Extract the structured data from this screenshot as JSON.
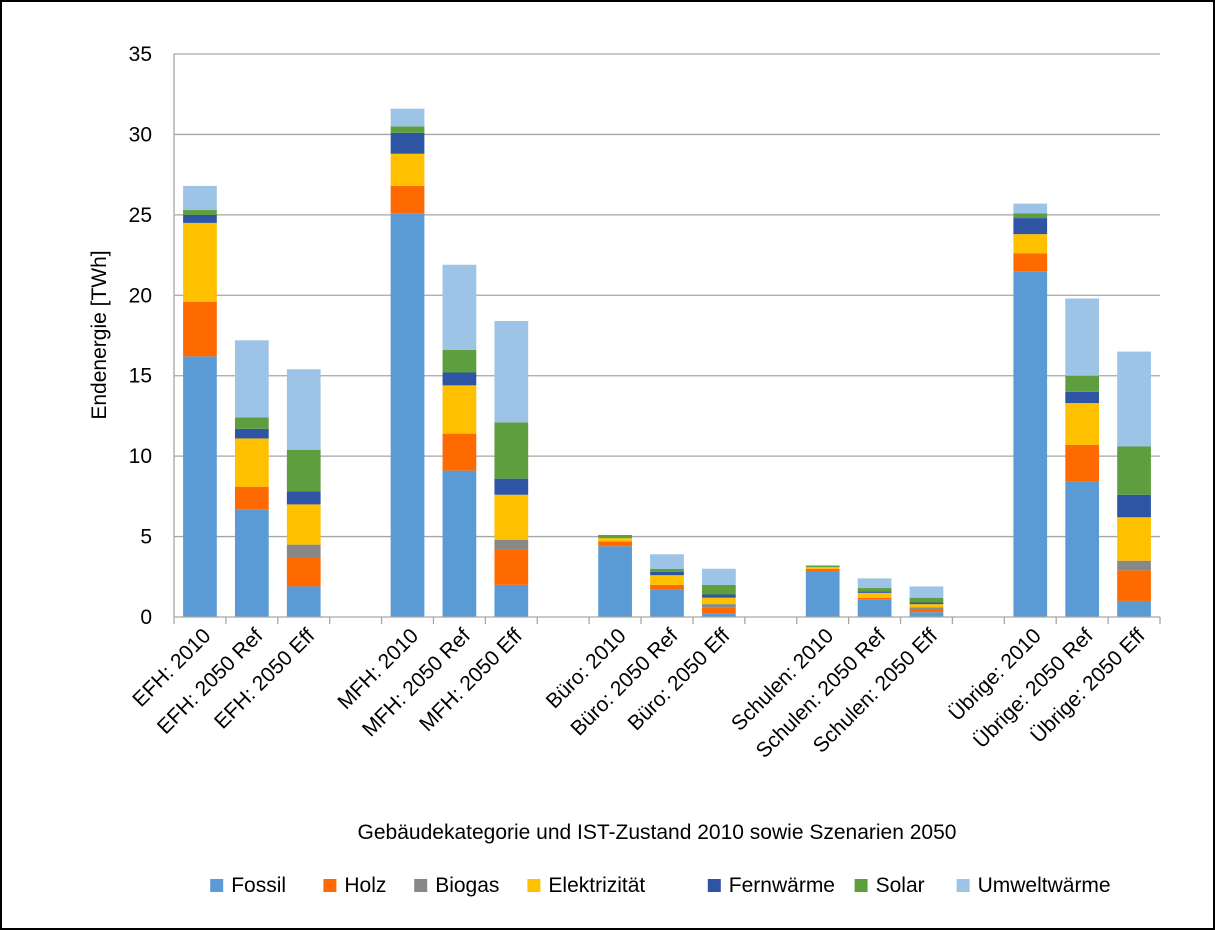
{
  "chart_data": {
    "type": "bar",
    "stacked": true,
    "title": "",
    "xlabel": "Gebäudekategorie und IST-Zustand 2010 sowie Szenarien 2050",
    "ylabel": "Endenergie [TWh]",
    "ylim": [
      0,
      35
    ],
    "yticks": [
      0,
      5,
      10,
      15,
      20,
      25,
      30,
      35
    ],
    "grid": true,
    "legend_position": "bottom",
    "categories": [
      "EFH: 2010",
      "EFH: 2050 Ref",
      "EFH: 2050 Eff",
      "MFH: 2010",
      "MFH: 2050 Ref",
      "MFH: 2050 Eff",
      "Büro: 2010",
      "Büro: 2050 Ref",
      "Büro: 2050 Eff",
      "Schulen: 2010",
      "Schulen: 2050 Ref",
      "Schulen: 2050 Eff",
      "Übrige: 2010",
      "Übrige: 2050 Ref",
      "Übrige: 2050 Eff"
    ],
    "groups": [
      3,
      3,
      3,
      3,
      3
    ],
    "series": [
      {
        "name": "Fossil",
        "color": "#5B9BD5",
        "values": [
          16.2,
          6.7,
          1.9,
          25.1,
          9.1,
          2.0,
          4.4,
          1.7,
          0.2,
          2.8,
          1.1,
          0.3,
          21.5,
          8.4,
          1.0
        ]
      },
      {
        "name": "Holz",
        "color": "#FF6A00",
        "values": [
          3.4,
          1.4,
          1.8,
          1.7,
          2.3,
          2.2,
          0.3,
          0.3,
          0.4,
          0.2,
          0.1,
          0.2,
          1.1,
          2.3,
          1.9
        ]
      },
      {
        "name": "Biogas",
        "color": "#888888",
        "values": [
          0.0,
          0.0,
          0.8,
          0.0,
          0.0,
          0.6,
          0.0,
          0.0,
          0.2,
          0.0,
          0.0,
          0.1,
          0.0,
          0.0,
          0.6
        ]
      },
      {
        "name": "Elektrizität",
        "color": "#FFC000",
        "values": [
          4.9,
          3.0,
          2.5,
          2.0,
          3.0,
          2.8,
          0.2,
          0.6,
          0.4,
          0.1,
          0.3,
          0.2,
          1.2,
          2.6,
          2.7
        ]
      },
      {
        "name": "Fernwärme",
        "color": "#2E55A4",
        "values": [
          0.5,
          0.6,
          0.8,
          1.3,
          0.8,
          1.0,
          0.0,
          0.2,
          0.2,
          0.0,
          0.1,
          0.1,
          1.0,
          0.7,
          1.4
        ]
      },
      {
        "name": "Solar",
        "color": "#5E9E3E",
        "values": [
          0.3,
          0.7,
          2.6,
          0.4,
          1.4,
          3.5,
          0.2,
          0.2,
          0.6,
          0.1,
          0.2,
          0.3,
          0.3,
          1.0,
          3.0
        ]
      },
      {
        "name": "Umweltwärme",
        "color": "#9DC3E6",
        "values": [
          1.5,
          4.8,
          5.0,
          1.1,
          5.3,
          6.3,
          0.0,
          0.9,
          1.0,
          0.0,
          0.6,
          0.7,
          0.6,
          4.8,
          5.9
        ]
      }
    ]
  }
}
